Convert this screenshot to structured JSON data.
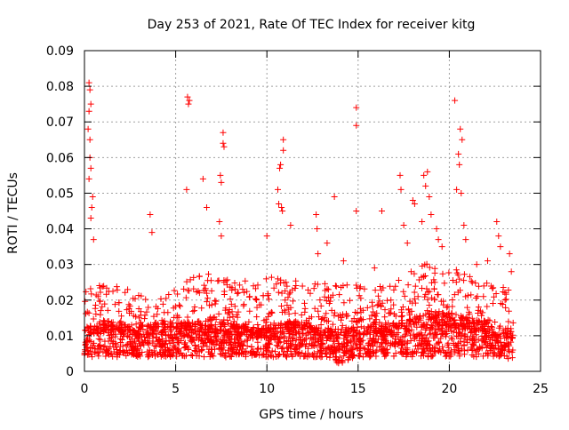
{
  "chart_data": {
    "type": "scatter",
    "title": "Day 253 of 2021, Rate Of TEC Index for receiver kitg",
    "xlabel": "GPS time / hours",
    "ylabel": "ROTI / TECUs",
    "xlim": [
      0,
      25
    ],
    "ylim": [
      0,
      0.09
    ],
    "x_ticks": [
      0,
      5,
      10,
      15,
      20,
      25
    ],
    "y_ticks": [
      0,
      0.01,
      0.02,
      0.03,
      0.04,
      0.05,
      0.06,
      0.07,
      0.08,
      0.09
    ],
    "x_tick_labels": [
      "0",
      "5",
      "10",
      "15",
      "20",
      "25"
    ],
    "y_tick_labels": [
      "0",
      "0.01",
      "0.02",
      "0.03",
      "0.04",
      "0.05",
      "0.06",
      "0.07",
      "0.08",
      "0.09"
    ],
    "grid": true,
    "marker": "+",
    "marker_color": "#ff0000",
    "series": [
      {
        "name": "ROTI",
        "x_range": [
          0,
          23.5
        ],
        "baseline_envelope": {
          "hours": [
            0,
            1,
            2,
            3,
            4,
            5,
            6,
            7,
            8,
            9,
            10,
            11,
            12,
            13,
            14,
            15,
            16,
            17,
            18,
            19,
            20,
            21,
            22,
            23,
            23.5
          ],
          "median": [
            0.01,
            0.011,
            0.011,
            0.01,
            0.011,
            0.011,
            0.011,
            0.012,
            0.011,
            0.01,
            0.01,
            0.011,
            0.011,
            0.01,
            0.009,
            0.01,
            0.011,
            0.011,
            0.012,
            0.013,
            0.013,
            0.012,
            0.011,
            0.01,
            0.009
          ],
          "upper": [
            0.025,
            0.026,
            0.024,
            0.023,
            0.022,
            0.024,
            0.027,
            0.028,
            0.027,
            0.025,
            0.026,
            0.028,
            0.026,
            0.025,
            0.024,
            0.025,
            0.024,
            0.026,
            0.029,
            0.031,
            0.03,
            0.027,
            0.025,
            0.024,
            0.022
          ],
          "lower": [
            0.004,
            0.004,
            0.004,
            0.004,
            0.004,
            0.004,
            0.004,
            0.004,
            0.004,
            0.004,
            0.004,
            0.004,
            0.004,
            0.004,
            0.002,
            0.004,
            0.004,
            0.004,
            0.004,
            0.004,
            0.004,
            0.004,
            0.004,
            0.004,
            0.003
          ]
        },
        "peaks": [
          {
            "x": 0.25,
            "y": 0.081
          },
          {
            "x": 0.3,
            "y": 0.079
          },
          {
            "x": 0.35,
            "y": 0.075
          },
          {
            "x": 0.25,
            "y": 0.073
          },
          {
            "x": 0.2,
            "y": 0.068
          },
          {
            "x": 0.3,
            "y": 0.065
          },
          {
            "x": 0.3,
            "y": 0.06
          },
          {
            "x": 0.35,
            "y": 0.057
          },
          {
            "x": 0.25,
            "y": 0.054
          },
          {
            "x": 0.45,
            "y": 0.049
          },
          {
            "x": 0.4,
            "y": 0.046
          },
          {
            "x": 0.35,
            "y": 0.043
          },
          {
            "x": 0.5,
            "y": 0.037
          },
          {
            "x": 3.6,
            "y": 0.044
          },
          {
            "x": 3.7,
            "y": 0.039
          },
          {
            "x": 5.65,
            "y": 0.077
          },
          {
            "x": 5.7,
            "y": 0.075
          },
          {
            "x": 5.75,
            "y": 0.076
          },
          {
            "x": 5.6,
            "y": 0.051
          },
          {
            "x": 6.5,
            "y": 0.054
          },
          {
            "x": 6.7,
            "y": 0.046
          },
          {
            "x": 7.45,
            "y": 0.055
          },
          {
            "x": 7.5,
            "y": 0.053
          },
          {
            "x": 7.6,
            "y": 0.067
          },
          {
            "x": 7.6,
            "y": 0.064
          },
          {
            "x": 7.65,
            "y": 0.063
          },
          {
            "x": 7.4,
            "y": 0.042
          },
          {
            "x": 7.5,
            "y": 0.038
          },
          {
            "x": 10.0,
            "y": 0.038
          },
          {
            "x": 10.6,
            "y": 0.051
          },
          {
            "x": 10.7,
            "y": 0.057
          },
          {
            "x": 10.75,
            "y": 0.058
          },
          {
            "x": 10.9,
            "y": 0.065
          },
          {
            "x": 10.9,
            "y": 0.062
          },
          {
            "x": 10.65,
            "y": 0.047
          },
          {
            "x": 10.8,
            "y": 0.046
          },
          {
            "x": 10.85,
            "y": 0.045
          },
          {
            "x": 11.3,
            "y": 0.041
          },
          {
            "x": 12.7,
            "y": 0.044
          },
          {
            "x": 12.75,
            "y": 0.04
          },
          {
            "x": 12.8,
            "y": 0.033
          },
          {
            "x": 13.3,
            "y": 0.036
          },
          {
            "x": 13.7,
            "y": 0.049
          },
          {
            "x": 14.2,
            "y": 0.031
          },
          {
            "x": 14.9,
            "y": 0.074
          },
          {
            "x": 14.9,
            "y": 0.069
          },
          {
            "x": 14.9,
            "y": 0.045
          },
          {
            "x": 15.9,
            "y": 0.029
          },
          {
            "x": 16.3,
            "y": 0.045
          },
          {
            "x": 17.3,
            "y": 0.055
          },
          {
            "x": 17.35,
            "y": 0.051
          },
          {
            "x": 17.5,
            "y": 0.041
          },
          {
            "x": 17.7,
            "y": 0.036
          },
          {
            "x": 18.0,
            "y": 0.048
          },
          {
            "x": 18.1,
            "y": 0.047
          },
          {
            "x": 18.5,
            "y": 0.042
          },
          {
            "x": 18.6,
            "y": 0.055
          },
          {
            "x": 18.7,
            "y": 0.052
          },
          {
            "x": 18.8,
            "y": 0.056
          },
          {
            "x": 18.9,
            "y": 0.049
          },
          {
            "x": 19.0,
            "y": 0.044
          },
          {
            "x": 19.3,
            "y": 0.04
          },
          {
            "x": 19.4,
            "y": 0.037
          },
          {
            "x": 19.6,
            "y": 0.035
          },
          {
            "x": 20.3,
            "y": 0.076
          },
          {
            "x": 20.6,
            "y": 0.068
          },
          {
            "x": 20.7,
            "y": 0.065
          },
          {
            "x": 20.5,
            "y": 0.061
          },
          {
            "x": 20.55,
            "y": 0.058
          },
          {
            "x": 20.4,
            "y": 0.051
          },
          {
            "x": 20.65,
            "y": 0.05
          },
          {
            "x": 20.8,
            "y": 0.041
          },
          {
            "x": 20.9,
            "y": 0.037
          },
          {
            "x": 21.5,
            "y": 0.03
          },
          {
            "x": 22.1,
            "y": 0.031
          },
          {
            "x": 22.6,
            "y": 0.042
          },
          {
            "x": 22.7,
            "y": 0.038
          },
          {
            "x": 22.8,
            "y": 0.035
          },
          {
            "x": 23.3,
            "y": 0.033
          },
          {
            "x": 23.4,
            "y": 0.028
          }
        ]
      }
    ]
  }
}
